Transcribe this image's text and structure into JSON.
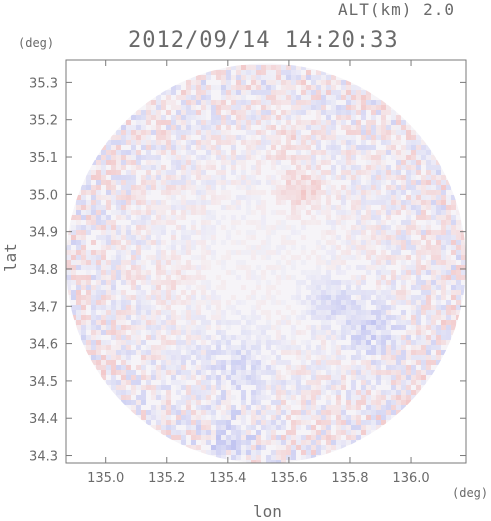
{
  "header": {
    "altitude_label": "ALT(km) 2.0",
    "datetime": "2012/09/14 14:20:33"
  },
  "chart_data": {
    "type": "heatmap",
    "title": "2012/09/14 14:20:33",
    "subtitle": "ALT(km) 2.0",
    "xlabel": "lon",
    "ylabel": "lat",
    "x_unit": "(deg)",
    "y_unit": "(deg)",
    "xlim": [
      134.87,
      136.18
    ],
    "ylim": [
      34.28,
      35.36
    ],
    "x_ticks": [
      "135.0",
      "135.2",
      "135.4",
      "135.6",
      "135.8",
      "136.0"
    ],
    "x_tick_values": [
      135.0,
      135.2,
      135.4,
      135.6,
      135.8,
      136.0
    ],
    "y_ticks": [
      "34.3",
      "34.4",
      "34.5",
      "34.6",
      "34.7",
      "34.8",
      "34.9",
      "35.0",
      "35.1",
      "35.2",
      "35.3"
    ],
    "y_tick_values": [
      34.3,
      34.4,
      34.5,
      34.6,
      34.7,
      34.8,
      34.9,
      35.0,
      35.1,
      35.2,
      35.3
    ],
    "radar_center": {
      "lon": 135.525,
      "lat": 34.815
    },
    "radar_radius_deg_lon": 0.655,
    "grid": false,
    "colors": {
      "positive": "#f0b0b0",
      "negative": "#b8bcf0",
      "neutral": "#f6f4f8"
    },
    "regions": [
      {
        "sign": "positive",
        "lon": 135.63,
        "lat": 35.02,
        "r": 0.07,
        "strength": 0.55
      },
      {
        "sign": "positive",
        "lon": 135.58,
        "lat": 35.15,
        "r": 0.06,
        "strength": 0.35
      },
      {
        "sign": "negative",
        "lon": 135.85,
        "lat": 34.65,
        "r": 0.09,
        "strength": 0.55
      },
      {
        "sign": "negative",
        "lon": 135.72,
        "lat": 34.72,
        "r": 0.08,
        "strength": 0.45
      },
      {
        "sign": "negative",
        "lon": 135.42,
        "lat": 34.55,
        "r": 0.12,
        "strength": 0.4
      },
      {
        "sign": "negative",
        "lon": 135.4,
        "lat": 34.35,
        "r": 0.09,
        "strength": 0.45
      },
      {
        "sign": "positive",
        "lon": 135.2,
        "lat": 34.78,
        "r": 0.07,
        "strength": 0.2
      }
    ]
  }
}
